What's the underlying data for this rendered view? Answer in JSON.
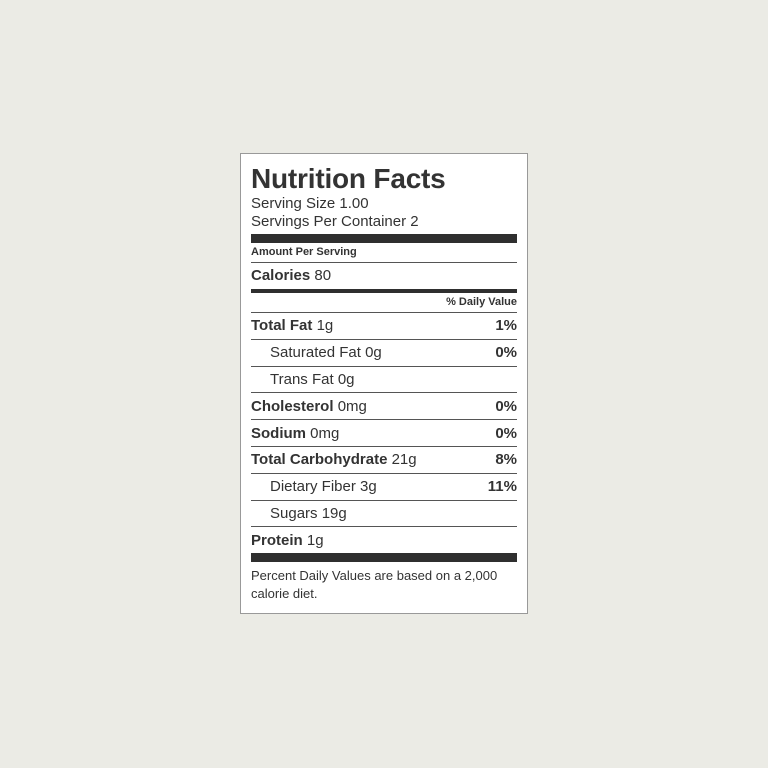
{
  "label": {
    "title": "Nutrition Facts",
    "serving_size": {
      "label": "Serving Size",
      "value": "1.00"
    },
    "servings_per_container": {
      "label": "Servings Per Container",
      "value": "2"
    },
    "amount_per_serving": "Amount Per Serving",
    "calories": {
      "label": "Calories",
      "value": "80"
    },
    "daily_value_header": "% Daily Value",
    "rows": [
      {
        "label": "Total Fat",
        "amount": "1g",
        "dv": "1%"
      },
      {
        "label": "Saturated Fat",
        "amount": "0g",
        "dv": "0%"
      },
      {
        "label": "Trans Fat",
        "amount": "0g"
      },
      {
        "label": "Cholesterol",
        "amount": "0mg",
        "dv": "0%"
      },
      {
        "label": "Sodium",
        "amount": "0mg",
        "dv": "0%"
      },
      {
        "label": "Total Carbohydrate",
        "amount": "21g",
        "dv": "8%"
      },
      {
        "label": "Dietary Fiber",
        "amount": "3g",
        "dv": "11%"
      },
      {
        "label": "Sugars",
        "amount": "19g"
      },
      {
        "label": "Protein",
        "amount": "1g"
      }
    ],
    "footnote": "Percent Daily Values are based on a 2,000 calorie diet."
  }
}
